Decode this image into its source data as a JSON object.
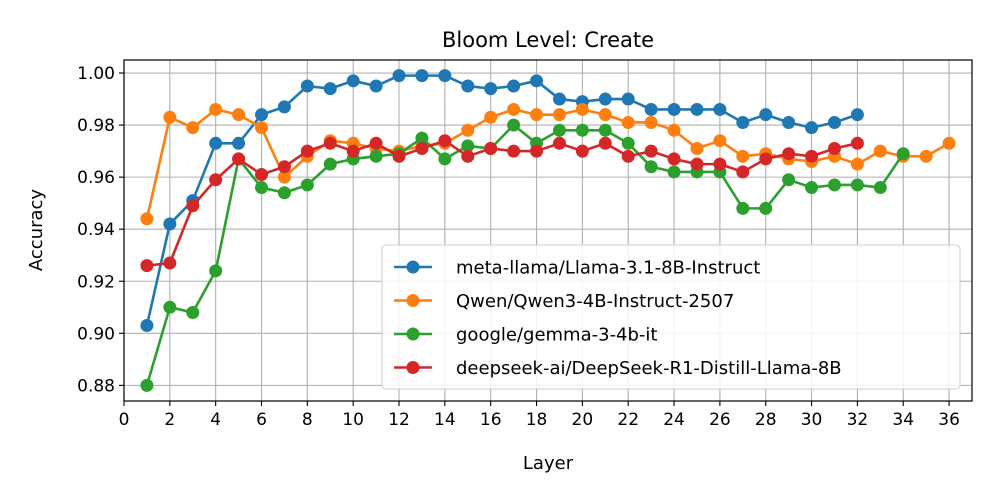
{
  "chart_data": {
    "type": "line",
    "title": "Bloom Level: Create",
    "xlabel": "Layer",
    "ylabel": "Accuracy",
    "xlim": [
      0,
      37
    ],
    "ylim": [
      0.874,
      1.005
    ],
    "xticks": [
      0,
      2,
      4,
      6,
      8,
      10,
      12,
      14,
      16,
      18,
      20,
      22,
      24,
      26,
      28,
      30,
      32,
      34,
      36
    ],
    "yticks": [
      0.88,
      0.9,
      0.92,
      0.94,
      0.96,
      0.98,
      1.0
    ],
    "ytick_labels": [
      "0.88",
      "0.90",
      "0.92",
      "0.94",
      "0.96",
      "0.98",
      "1.00"
    ],
    "grid": true,
    "legend_position": "lower-right",
    "series": [
      {
        "name": "meta-llama/Llama-3.1-8B-Instruct",
        "color": "#1f77b4",
        "x": [
          1,
          2,
          3,
          4,
          5,
          6,
          7,
          8,
          9,
          10,
          11,
          12,
          13,
          14,
          15,
          16,
          17,
          18,
          19,
          20,
          21,
          22,
          23,
          24,
          25,
          26,
          27,
          28,
          29,
          30,
          31,
          32
        ],
        "values": [
          0.903,
          0.942,
          0.951,
          0.973,
          0.973,
          0.984,
          0.987,
          0.995,
          0.994,
          0.997,
          0.995,
          0.999,
          0.999,
          0.999,
          0.995,
          0.994,
          0.995,
          0.997,
          0.99,
          0.989,
          0.99,
          0.99,
          0.986,
          0.986,
          0.986,
          0.986,
          0.981,
          0.984,
          0.981,
          0.979,
          0.981,
          0.984
        ]
      },
      {
        "name": "Qwen/Qwen3-4B-Instruct-2507",
        "color": "#ff7f0e",
        "x": [
          1,
          2,
          3,
          4,
          5,
          6,
          7,
          8,
          9,
          10,
          11,
          12,
          13,
          14,
          15,
          16,
          17,
          18,
          19,
          20,
          21,
          22,
          23,
          24,
          25,
          26,
          27,
          28,
          29,
          30,
          31,
          32,
          33,
          34,
          35,
          36
        ],
        "values": [
          0.944,
          0.983,
          0.979,
          0.986,
          0.984,
          0.979,
          0.96,
          0.968,
          0.974,
          0.973,
          0.971,
          0.97,
          0.972,
          0.973,
          0.978,
          0.983,
          0.986,
          0.984,
          0.984,
          0.986,
          0.984,
          0.981,
          0.981,
          0.978,
          0.971,
          0.974,
          0.968,
          0.969,
          0.967,
          0.966,
          0.968,
          0.965,
          0.97,
          0.968,
          0.968,
          0.973
        ]
      },
      {
        "name": "google/gemma-3-4b-it",
        "color": "#2ca02c",
        "x": [
          1,
          2,
          3,
          4,
          5,
          6,
          7,
          8,
          9,
          10,
          11,
          12,
          13,
          14,
          15,
          16,
          17,
          18,
          19,
          20,
          21,
          22,
          23,
          24,
          25,
          26,
          27,
          28,
          29,
          30,
          31,
          32,
          33,
          34
        ],
        "values": [
          0.88,
          0.91,
          0.908,
          0.924,
          0.967,
          0.956,
          0.954,
          0.957,
          0.965,
          0.967,
          0.968,
          0.969,
          0.975,
          0.967,
          0.972,
          0.971,
          0.98,
          0.973,
          0.978,
          0.978,
          0.978,
          0.973,
          0.964,
          0.962,
          0.962,
          0.962,
          0.948,
          0.948,
          0.959,
          0.956,
          0.957,
          0.957,
          0.956,
          0.969
        ]
      },
      {
        "name": "deepseek-ai/DeepSeek-R1-Distill-Llama-8B",
        "color": "#d62728",
        "x": [
          1,
          2,
          3,
          4,
          5,
          6,
          7,
          8,
          9,
          10,
          11,
          12,
          13,
          14,
          15,
          16,
          17,
          18,
          19,
          20,
          21,
          22,
          23,
          24,
          25,
          26,
          27,
          28,
          29,
          30,
          31,
          32
        ],
        "values": [
          0.926,
          0.927,
          0.949,
          0.959,
          0.967,
          0.961,
          0.964,
          0.97,
          0.973,
          0.97,
          0.973,
          0.968,
          0.971,
          0.974,
          0.968,
          0.971,
          0.97,
          0.97,
          0.973,
          0.97,
          0.973,
          0.968,
          0.97,
          0.967,
          0.965,
          0.965,
          0.962,
          0.967,
          0.969,
          0.968,
          0.971,
          0.973
        ]
      }
    ]
  }
}
